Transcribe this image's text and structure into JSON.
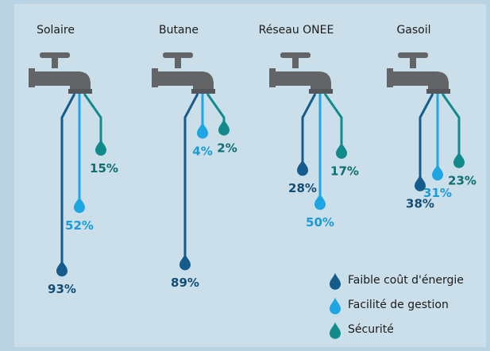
{
  "chart_data": {
    "type": "drip",
    "categories": [
      "Solaire",
      "Butane",
      "Réseau ONEE",
      "Gasoil"
    ],
    "series": [
      {
        "name": "Faible coût d'énergie",
        "color": "#155b8c",
        "values": [
          93,
          89,
          28,
          38
        ],
        "value_labels": [
          "93%",
          "89%",
          "28%",
          "38%"
        ]
      },
      {
        "name": "Facilité de gestion",
        "color": "#1ea6e3",
        "values": [
          52,
          4,
          50,
          31
        ],
        "value_labels": [
          "52%",
          "4%",
          "50%",
          "31%"
        ]
      },
      {
        "name": "Sécurité",
        "color": "#128a8c",
        "values": [
          15,
          2,
          17,
          23
        ],
        "value_labels": [
          "15%",
          "2%",
          "17%",
          "23%"
        ]
      }
    ]
  }
}
